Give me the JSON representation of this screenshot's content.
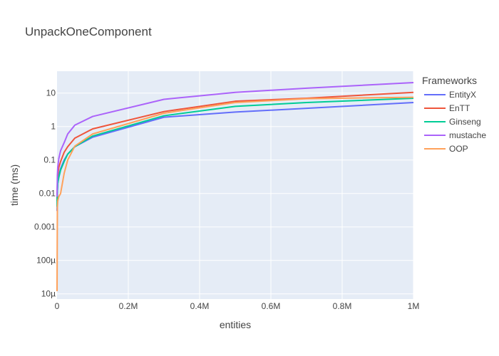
{
  "chart_data": {
    "type": "line",
    "title": "UnpackOneComponent",
    "xlabel": "entities",
    "ylabel": "time (ms)",
    "y_scale": "log",
    "xlim": [
      0,
      1000000
    ],
    "ylim": [
      7e-06,
      45
    ],
    "x_ticks": [
      {
        "value": 0,
        "label": "0"
      },
      {
        "value": 200000,
        "label": "0.2M"
      },
      {
        "value": 400000,
        "label": "0.4M"
      },
      {
        "value": 600000,
        "label": "0.6M"
      },
      {
        "value": 800000,
        "label": "0.8M"
      },
      {
        "value": 1000000,
        "label": "1M"
      }
    ],
    "y_ticks": [
      {
        "value": 1e-05,
        "label": "10µ"
      },
      {
        "value": 0.0001,
        "label": "100µ"
      },
      {
        "value": 0.001,
        "label": "0.001"
      },
      {
        "value": 0.01,
        "label": "0.01"
      },
      {
        "value": 0.1,
        "label": "0.1"
      },
      {
        "value": 1,
        "label": "1"
      },
      {
        "value": 10,
        "label": "10"
      }
    ],
    "legend_title": "Frameworks",
    "legend_position": "right",
    "x": [
      0,
      1000,
      2000,
      5000,
      10000,
      20000,
      30000,
      50000,
      100000,
      300000,
      500000,
      700000,
      1000000
    ],
    "series": [
      {
        "name": "EntityX",
        "color": "#636efa",
        "values": [
          0.003,
          0.012,
          0.02,
          0.035,
          0.055,
          0.1,
          0.15,
          0.25,
          0.48,
          1.9,
          2.7,
          3.5,
          5.2
        ]
      },
      {
        "name": "EnTT",
        "color": "#ef553b",
        "values": [
          0.006,
          0.02,
          0.035,
          0.06,
          0.09,
          0.17,
          0.25,
          0.45,
          0.85,
          2.8,
          5.7,
          7.0,
          10.5
        ]
      },
      {
        "name": "Ginseng",
        "color": "#00cc96",
        "values": [
          0.004,
          0.012,
          0.02,
          0.03,
          0.05,
          0.09,
          0.15,
          0.25,
          0.52,
          2.1,
          4.0,
          5.2,
          7.0
        ]
      },
      {
        "name": "mustache",
        "color": "#ab63fa",
        "values": [
          0.008,
          0.035,
          0.06,
          0.11,
          0.19,
          0.33,
          0.6,
          1.1,
          2.0,
          6.5,
          10.5,
          14.0,
          20.5
        ]
      },
      {
        "name": "OOP",
        "color": "#ffa15a",
        "values": [
          1.2e-05,
          0.004,
          0.006,
          0.008,
          0.01,
          0.04,
          0.1,
          0.26,
          0.6,
          2.5,
          5.2,
          6.8,
          7.5
        ]
      }
    ]
  }
}
